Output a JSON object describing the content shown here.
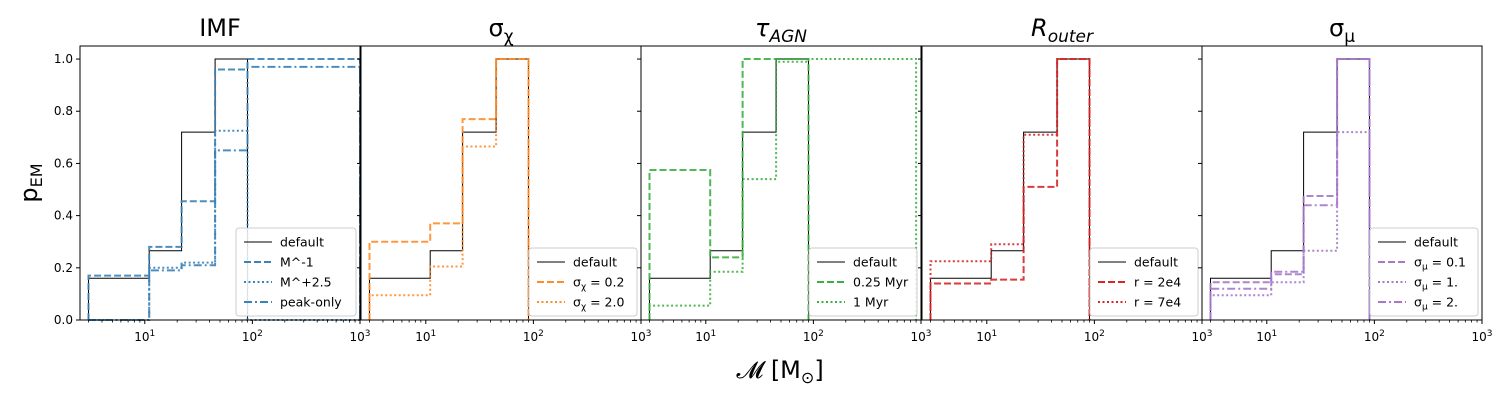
{
  "figure": {
    "ylabel_main": "p",
    "ylabel_sub": "EM",
    "xlabel": "𝓜 [M",
    "xlabel_sub": "⊙",
    "xlabel_close": "]"
  },
  "chart_data": [
    {
      "type": "step",
      "title": "IMF",
      "xscale": "log",
      "xlim": [
        2.5,
        1000
      ],
      "ylim": [
        0,
        1.05
      ],
      "edges": [
        3,
        11,
        22,
        45,
        90,
        1000
      ],
      "xticks": [
        "10^1",
        "10^2",
        "10^3"
      ],
      "yticks": [
        "0.0",
        "0.2",
        "0.4",
        "0.6",
        "0.8",
        "1.0"
      ],
      "legend_position": "lower right",
      "series": [
        {
          "name": "default",
          "color": "#000000",
          "dash": "solid",
          "width": 1,
          "values": [
            0.16,
            0.265,
            0.72,
            1.0,
            0,
            null
          ]
        },
        {
          "name": "M^-1",
          "color": "#3a82b7",
          "dash": "dashed",
          "width": 2,
          "values": [
            0.17,
            0.28,
            0.455,
            0.96,
            1.0
          ]
        },
        {
          "name": "M^+2.5",
          "color": "#3a82b7",
          "dash": "dotted",
          "width": 2,
          "values": [
            0,
            0.2,
            0.22,
            0.725,
            0
          ]
        },
        {
          "name": "peak-only",
          "color": "#3a82b7",
          "dash": "dashdot",
          "width": 2,
          "values": [
            0,
            0.19,
            0.21,
            0.65,
            0.97
          ]
        }
      ]
    },
    {
      "type": "step",
      "title": "σχ",
      "xscale": "log",
      "xlim": [
        2.5,
        1000
      ],
      "ylim": [
        0,
        1.05
      ],
      "edges": [
        3,
        11,
        22,
        45,
        90
      ],
      "xticks": [
        "10^1",
        "10^2",
        "10^3"
      ],
      "legend_position": "lower right",
      "series": [
        {
          "name": "default",
          "color": "#000000",
          "dash": "solid",
          "width": 1,
          "values": [
            0.16,
            0.265,
            0.72,
            1.0
          ]
        },
        {
          "name": "σχ = 0.2",
          "color": "#ff8c2a",
          "dash": "dashed",
          "width": 2,
          "values": [
            0.3,
            0.37,
            0.77,
            1.0
          ]
        },
        {
          "name": "σχ = 2.0",
          "color": "#ff8c2a",
          "dash": "dotted",
          "width": 2,
          "values": [
            0.095,
            0.205,
            0.665,
            1.0
          ]
        }
      ]
    },
    {
      "type": "step",
      "title": "τAGN",
      "xscale": "log",
      "xlim": [
        2.5,
        1000
      ],
      "ylim": [
        0,
        1.05
      ],
      "edges": [
        3,
        11,
        22,
        45,
        90,
        900
      ],
      "xticks": [
        "10^1",
        "10^2",
        "10^3"
      ],
      "legend_position": "lower right",
      "series": [
        {
          "name": "default",
          "color": "#000000",
          "dash": "solid",
          "width": 1,
          "values": [
            0.16,
            0.265,
            0.72,
            1.0
          ]
        },
        {
          "name": "0.25 Myr",
          "color": "#3cb043",
          "dash": "dashed",
          "width": 2,
          "values": [
            0.575,
            0.24,
            1.0,
            1.0
          ]
        },
        {
          "name": "1 Myr",
          "color": "#3cb043",
          "dash": "dotted",
          "width": 2,
          "values": [
            0.055,
            0.185,
            0.54,
            0.99,
            1.0
          ]
        }
      ]
    },
    {
      "type": "step",
      "title": "Router",
      "xscale": "log",
      "xlim": [
        2.5,
        1000
      ],
      "ylim": [
        0,
        1.05
      ],
      "edges": [
        3,
        11,
        22,
        45,
        90
      ],
      "xticks": [
        "10^1",
        "10^2",
        "10^3"
      ],
      "legend_position": "lower right",
      "series": [
        {
          "name": "default",
          "color": "#000000",
          "dash": "solid",
          "width": 1,
          "values": [
            0.16,
            0.265,
            0.72,
            1.0
          ]
        },
        {
          "name": "r = 2e4",
          "color": "#d62728",
          "dash": "dashed",
          "width": 2,
          "values": [
            0.14,
            0.155,
            0.51,
            1.0
          ]
        },
        {
          "name": "r = 7e4",
          "color": "#d62728",
          "dash": "dotted",
          "width": 2,
          "values": [
            0.225,
            0.29,
            0.71,
            1.0
          ]
        }
      ]
    },
    {
      "type": "step",
      "title": "σμ",
      "xscale": "log",
      "xlim": [
        2.5,
        1000
      ],
      "ylim": [
        0,
        1.05
      ],
      "edges": [
        3,
        11,
        22,
        45,
        90
      ],
      "xticks": [
        "10^1",
        "10^2",
        "10^3"
      ],
      "legend_position": "lower right",
      "series": [
        {
          "name": "default",
          "color": "#000000",
          "dash": "solid",
          "width": 1,
          "values": [
            0.16,
            0.265,
            0.72,
            1.0
          ]
        },
        {
          "name": "σμ = 0.1",
          "color": "#a678c8",
          "dash": "dashed",
          "width": 2,
          "values": [
            0.145,
            0.175,
            0.475,
            1.0
          ]
        },
        {
          "name": "σμ = 1.",
          "color": "#a678c8",
          "dash": "dotted",
          "width": 2,
          "values": [
            0.095,
            0.145,
            0.265,
            0.72
          ]
        },
        {
          "name": "σμ = 2.",
          "color": "#a678c8",
          "dash": "dashdot",
          "width": 2,
          "values": [
            0.12,
            0.185,
            0.44,
            1.0
          ]
        }
      ]
    }
  ]
}
